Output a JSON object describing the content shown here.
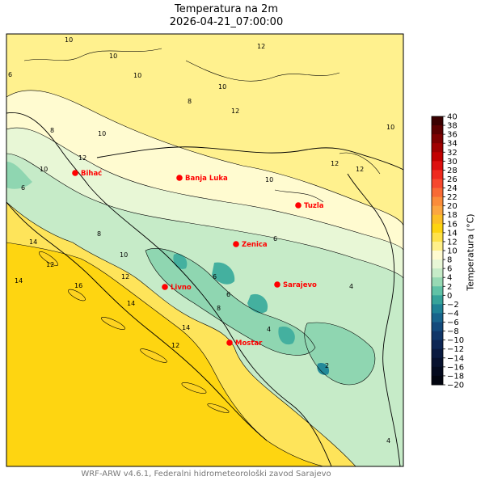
{
  "title": {
    "line1": "Temperatura na 2m",
    "line2": "2026-04-21_07:00:00"
  },
  "footer": "WRF-ARW v4.6.1, Federalni hidrometeorološki zavod Sarajevo",
  "colorbar": {
    "label": "Temperatura (°C)",
    "ticks": [
      "40",
      "38",
      "36",
      "34",
      "32",
      "30",
      "28",
      "26",
      "24",
      "22",
      "20",
      "18",
      "16",
      "14",
      "12",
      "10",
      "8",
      "6",
      "4",
      "2",
      "0",
      "−2",
      "−4",
      "−6",
      "−8",
      "−10",
      "−12",
      "−14",
      "−16",
      "−18",
      "−20"
    ],
    "colors": [
      "#3a0000",
      "#5c0000",
      "#7e0000",
      "#a00000",
      "#c20000",
      "#dd1010",
      "#ef2a1e",
      "#f6482e",
      "#f86a35",
      "#fa8c3a",
      "#fba640",
      "#fcbf26",
      "#fdd410",
      "#fee24a",
      "#fff08a",
      "#fffbd0",
      "#e8f7d6",
      "#c6ebc8",
      "#97d9b4",
      "#60c2a6",
      "#36a39a",
      "#1f8295",
      "#18648c",
      "#134a7c",
      "#103668",
      "#0d2654",
      "#0a1a40",
      "#07112e",
      "#040a1e",
      "#020510"
    ]
  },
  "cities": [
    {
      "name": "Bihać"
    },
    {
      "name": "Banja Luka"
    },
    {
      "name": "Tuzla"
    },
    {
      "name": "Zenica"
    },
    {
      "name": "Sarajevo"
    },
    {
      "name": "Livno"
    },
    {
      "name": "Mostar"
    }
  ],
  "contour_labels": [
    "10",
    "10",
    "10",
    "10",
    "8",
    "12",
    "12",
    "10",
    "12",
    "10",
    "12",
    "10",
    "12",
    "10",
    "6",
    "8",
    "6",
    "8",
    "10",
    "12",
    "14",
    "14",
    "16",
    "12",
    "14",
    "14",
    "12",
    "6",
    "6",
    "6",
    "4",
    "4",
    "4",
    "2",
    "8"
  ],
  "colors": {
    "warm_sea": "#fed511",
    "coast_16": "#fed320",
    "band_14": "#fee45a",
    "band_12": "#fff18e",
    "band_10": "#fffbd0",
    "band_8": "#e8f7d6",
    "band_6": "#c6ebc8",
    "band_4": "#8fd6b1",
    "band_2": "#44b09f",
    "band_0": "#238a99",
    "city": "#ff0000"
  }
}
